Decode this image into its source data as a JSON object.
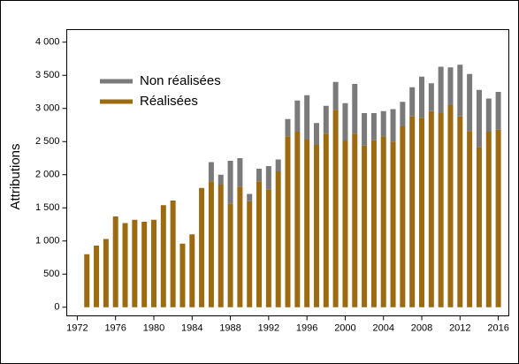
{
  "chart_data": {
    "type": "stacked_bar",
    "ylabel": "Attributions",
    "x": [
      1973,
      1974,
      1975,
      1976,
      1977,
      1978,
      1979,
      1980,
      1981,
      1982,
      1983,
      1984,
      1985,
      1986,
      1987,
      1988,
      1989,
      1990,
      1991,
      1992,
      1993,
      1994,
      1995,
      1996,
      1997,
      1998,
      1999,
      2000,
      2001,
      2002,
      2003,
      2004,
      2005,
      2006,
      2007,
      2008,
      2009,
      2010,
      2011,
      2012,
      2013,
      2014,
      2015,
      2016
    ],
    "series": [
      {
        "name": "Réalisées",
        "color": "#9c6a10",
        "values": [
          800,
          930,
          1030,
          1370,
          1270,
          1320,
          1290,
          1320,
          1540,
          1610,
          960,
          1100,
          1800,
          1900,
          1850,
          1560,
          1820,
          1600,
          1900,
          1780,
          2050,
          2580,
          2650,
          2530,
          2450,
          2620,
          2980,
          2510,
          2620,
          2440,
          2520,
          2580,
          2500,
          2730,
          2880,
          2860,
          2960,
          2930,
          3050,
          2880,
          2660,
          2420,
          2650,
          2680
        ]
      },
      {
        "name": "Non réalisées",
        "color": "#7a7a7a",
        "values": [
          0,
          0,
          0,
          0,
          0,
          0,
          0,
          0,
          0,
          0,
          0,
          0,
          0,
          290,
          150,
          650,
          430,
          110,
          190,
          350,
          180,
          260,
          470,
          670,
          330,
          420,
          420,
          570,
          750,
          490,
          410,
          380,
          490,
          370,
          440,
          620,
          420,
          700,
          570,
          780,
          860,
          860,
          500,
          570
        ]
      }
    ],
    "xlim": [
      1970.9,
      2017.1
    ],
    "xticks": [
      1972,
      1976,
      1980,
      1984,
      1988,
      1992,
      1996,
      2000,
      2004,
      2008,
      2012,
      2016
    ],
    "ylim": [
      -130,
      4190
    ],
    "yticks": [
      0,
      500,
      {
        "value": 1000,
        "label": "1 000"
      },
      {
        "value": 1500,
        "label": "1 500"
      },
      {
        "value": 2000,
        "label": "2 000"
      },
      {
        "value": 2500,
        "label": "2 500"
      },
      {
        "value": 3000,
        "label": "3 000"
      },
      {
        "value": 3500,
        "label": "3 500"
      },
      {
        "value": 4000,
        "label": "4 000"
      }
    ],
    "legend": "upper left",
    "grid": false
  }
}
